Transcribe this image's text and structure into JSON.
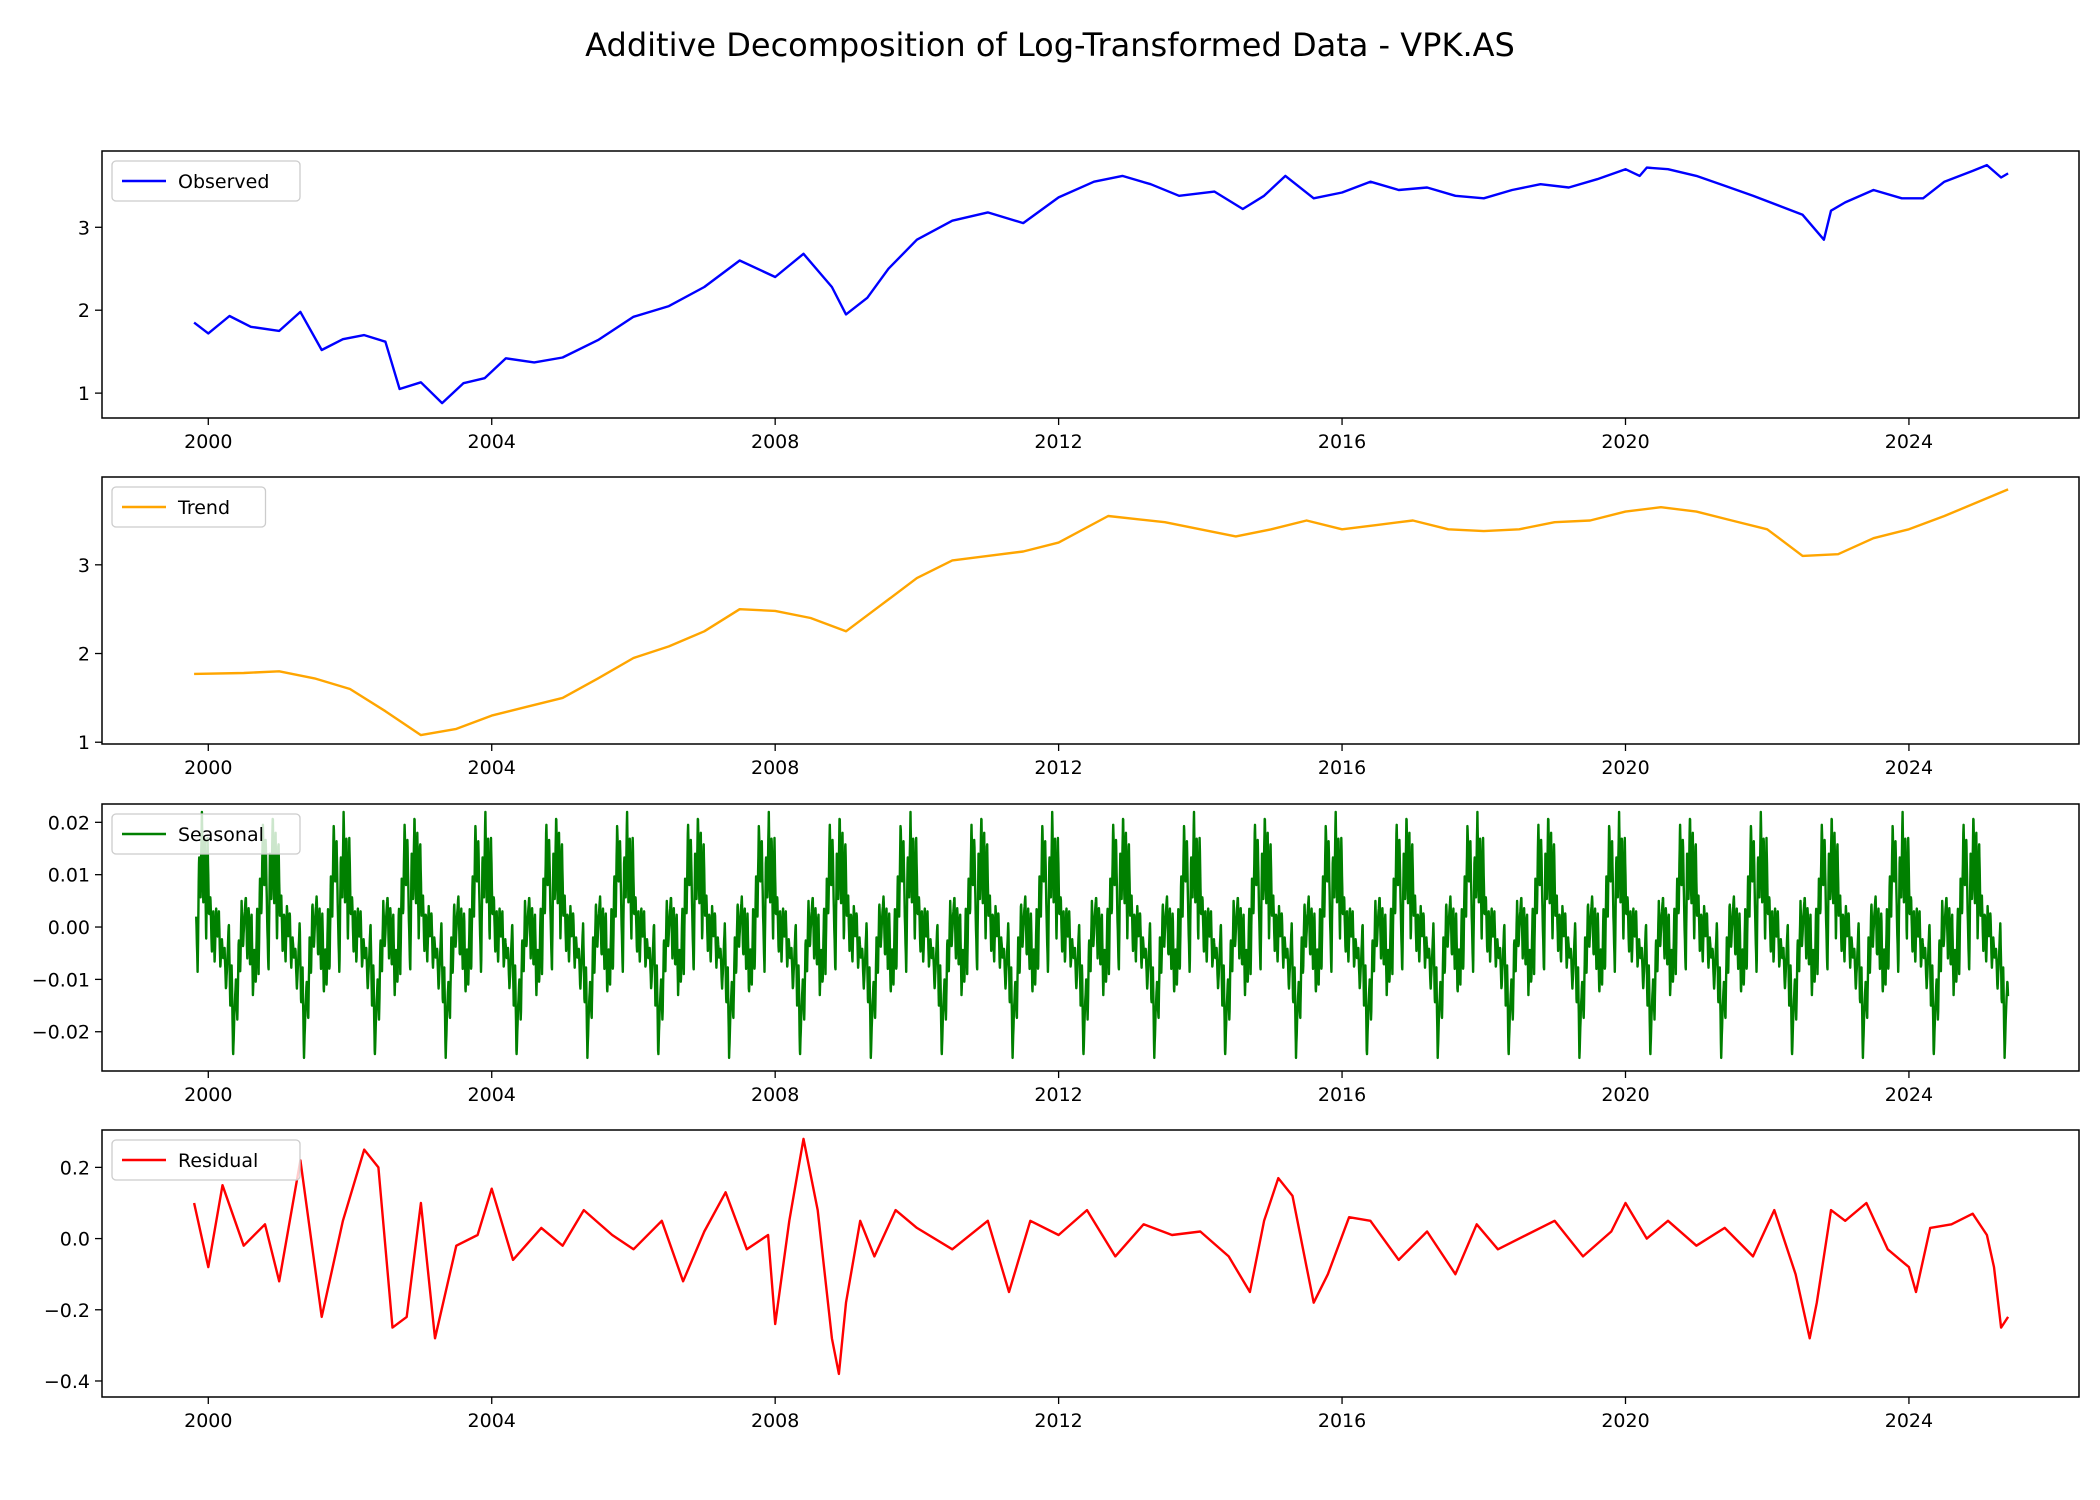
{
  "figure_title": "Additive Decomposition of Log-Transformed Data - VPK.AS",
  "chart_data": [
    {
      "type": "line",
      "legend_label": "Observed",
      "color": "#0000ff",
      "legend_position": "upper-left",
      "x_range": [
        1998.5,
        2026.4
      ],
      "ylim": [
        0.7,
        3.92
      ],
      "x_ticks": [
        "2000",
        "2004",
        "2008",
        "2012",
        "2016",
        "2020",
        "2024"
      ],
      "y_ticks": [
        "1",
        "2",
        "3"
      ],
      "series": [
        {
          "x": [
            1999.8,
            2000.0,
            2000.3,
            2000.6,
            2001.0,
            2001.3,
            2001.6,
            2001.9,
            2002.2,
            2002.5,
            2002.7,
            2003.0,
            2003.3,
            2003.6,
            2003.9,
            2004.2,
            2004.6,
            2005.0,
            2005.5,
            2006.0,
            2006.5,
            2007.0,
            2007.5,
            2008.0,
            2008.4,
            2008.8,
            2009.0,
            2009.3,
            2009.6,
            2010.0,
            2010.5,
            2011.0,
            2011.5,
            2012.0,
            2012.5,
            2012.9,
            2013.3,
            2013.7,
            2014.2,
            2014.6,
            2014.9,
            2015.2,
            2015.6,
            2016.0,
            2016.4,
            2016.8,
            2017.2,
            2017.6,
            2018.0,
            2018.4,
            2018.8,
            2019.2,
            2019.6,
            2020.0,
            2020.2,
            2020.3,
            2020.6,
            2021.0,
            2021.4,
            2021.8,
            2022.2,
            2022.5,
            2022.8,
            2022.9,
            2023.1,
            2023.5,
            2023.9,
            2024.2,
            2024.5,
            2024.9,
            2025.1,
            2025.3,
            2025.4
          ],
          "y": [
            1.85,
            1.72,
            1.93,
            1.8,
            1.75,
            1.98,
            1.52,
            1.65,
            1.7,
            1.62,
            1.05,
            1.13,
            0.88,
            1.12,
            1.18,
            1.42,
            1.37,
            1.43,
            1.64,
            1.92,
            2.05,
            2.28,
            2.6,
            2.4,
            2.68,
            2.28,
            1.95,
            2.15,
            2.5,
            2.85,
            3.08,
            3.18,
            3.05,
            3.36,
            3.55,
            3.62,
            3.52,
            3.38,
            3.43,
            3.22,
            3.38,
            3.62,
            3.35,
            3.42,
            3.55,
            3.45,
            3.48,
            3.38,
            3.35,
            3.45,
            3.52,
            3.48,
            3.58,
            3.7,
            3.62,
            3.72,
            3.7,
            3.62,
            3.5,
            3.38,
            3.25,
            3.15,
            2.85,
            3.2,
            3.3,
            3.45,
            3.35,
            3.35,
            3.55,
            3.68,
            3.75,
            3.6,
            3.65
          ]
        }
      ]
    },
    {
      "type": "line",
      "legend_label": "Trend",
      "color": "#ffa500",
      "legend_position": "upper-left",
      "x_range": [
        1998.5,
        2026.4
      ],
      "ylim": [
        0.98,
        3.99
      ],
      "x_ticks": [
        "2000",
        "2004",
        "2008",
        "2012",
        "2016",
        "2020",
        "2024"
      ],
      "y_ticks": [
        "1",
        "2",
        "3"
      ],
      "series": [
        {
          "x": [
            1999.8,
            2000.5,
            2001.0,
            2001.5,
            2002.0,
            2002.5,
            2003.0,
            2003.5,
            2004.0,
            2004.5,
            2005.0,
            2005.5,
            2006.0,
            2006.5,
            2007.0,
            2007.5,
            2008.0,
            2008.5,
            2009.0,
            2009.5,
            2010.0,
            2010.5,
            2011.0,
            2011.5,
            2012.0,
            2012.7,
            2013.5,
            2014.0,
            2014.5,
            2015.0,
            2015.5,
            2016.0,
            2016.5,
            2017.0,
            2017.5,
            2018.0,
            2018.5,
            2019.0,
            2019.5,
            2020.0,
            2020.5,
            2021.0,
            2021.5,
            2022.0,
            2022.5,
            2023.0,
            2023.5,
            2024.0,
            2024.5,
            2025.4
          ],
          "y": [
            1.77,
            1.78,
            1.8,
            1.72,
            1.6,
            1.35,
            1.08,
            1.15,
            1.3,
            1.4,
            1.5,
            1.72,
            1.95,
            2.08,
            2.25,
            2.5,
            2.48,
            2.4,
            2.25,
            2.55,
            2.85,
            3.05,
            3.1,
            3.15,
            3.25,
            3.55,
            3.48,
            3.4,
            3.32,
            3.4,
            3.5,
            3.4,
            3.45,
            3.5,
            3.4,
            3.38,
            3.4,
            3.48,
            3.5,
            3.6,
            3.65,
            3.6,
            3.5,
            3.4,
            3.1,
            3.12,
            3.3,
            3.4,
            3.55,
            3.85
          ]
        }
      ]
    },
    {
      "type": "line",
      "legend_label": "Seasonal",
      "color": "#008000",
      "legend_position": "upper-left",
      "x_range": [
        1998.5,
        2026.4
      ],
      "ylim": [
        -0.0275,
        0.0235
      ],
      "x_ticks": [
        "2000",
        "2004",
        "2008",
        "2012",
        "2016",
        "2020",
        "2024"
      ],
      "y_ticks": [
        "0.02",
        "0.01",
        "0.00",
        "−0.01",
        "−0.02"
      ],
      "series": [
        {
          "period_years": 1.0,
          "start_year": 1999.83,
          "end_year": 2025.4,
          "shape_phase": [
            0.0,
            0.02,
            0.04,
            0.06,
            0.08,
            0.1,
            0.12,
            0.14,
            0.16,
            0.18,
            0.2,
            0.22,
            0.24,
            0.26,
            0.28,
            0.3,
            0.32,
            0.34,
            0.36,
            0.38,
            0.4,
            0.42,
            0.44,
            0.46,
            0.48,
            0.5,
            0.52,
            0.54,
            0.56,
            0.58,
            0.6,
            0.62,
            0.64,
            0.66,
            0.68,
            0.7,
            0.72,
            0.74,
            0.76,
            0.78,
            0.8,
            0.82,
            0.84,
            0.86,
            0.88,
            0.9,
            0.92,
            0.94,
            0.96,
            0.98
          ],
          "shape_value": [
            0.002,
            -0.009,
            0.014,
            0.005,
            0.022,
            0.004,
            0.018,
            -0.003,
            0.017,
            0.002,
            0.006,
            -0.005,
            0.003,
            -0.007,
            0.004,
            -0.002,
            0.003,
            -0.008,
            -0.002,
            -0.006,
            -0.004,
            -0.012,
            -0.006,
            0.001,
            -0.015,
            -0.007,
            -0.025,
            -0.016,
            -0.01,
            -0.018,
            -0.002,
            -0.009,
            0.005,
            -0.004,
            0.002,
            0.006,
            -0.006,
            0.004,
            -0.008,
            0.003,
            -0.013,
            -0.004,
            -0.011,
            0.004,
            -0.009,
            0.01,
            0.002,
            0.02,
            0.008,
            0.017
          ]
        }
      ]
    },
    {
      "type": "line",
      "legend_label": "Residual",
      "color": "#ff0000",
      "legend_position": "upper-left",
      "x_range": [
        1998.5,
        2026.4
      ],
      "ylim": [
        -0.445,
        0.305
      ],
      "x_ticks": [
        "2000",
        "2004",
        "2008",
        "2012",
        "2016",
        "2020",
        "2024"
      ],
      "y_ticks": [
        "0.2",
        "0.0",
        "−0.2",
        "−0.4"
      ],
      "series": [
        {
          "x": [
            1999.8,
            2000.0,
            2000.2,
            2000.5,
            2000.8,
            2001.0,
            2001.3,
            2001.6,
            2001.9,
            2002.2,
            2002.4,
            2002.6,
            2002.8,
            2003.0,
            2003.2,
            2003.5,
            2003.8,
            2004.0,
            2004.3,
            2004.7,
            2005.0,
            2005.3,
            2005.7,
            2006.0,
            2006.4,
            2006.7,
            2007.0,
            2007.3,
            2007.6,
            2007.9,
            2008.0,
            2008.2,
            2008.4,
            2008.6,
            2008.8,
            2008.9,
            2009.0,
            2009.2,
            2009.4,
            2009.7,
            2010.0,
            2010.5,
            2011.0,
            2011.3,
            2011.6,
            2012.0,
            2012.4,
            2012.8,
            2013.2,
            2013.6,
            2014.0,
            2014.4,
            2014.7,
            2014.9,
            2015.1,
            2015.3,
            2015.5,
            2015.6,
            2015.8,
            2016.1,
            2016.4,
            2016.8,
            2017.2,
            2017.6,
            2017.9,
            2018.2,
            2018.6,
            2019.0,
            2019.4,
            2019.8,
            2020.0,
            2020.3,
            2020.6,
            2021.0,
            2021.4,
            2021.8,
            2022.1,
            2022.4,
            2022.6,
            2022.7,
            2022.9,
            2023.1,
            2023.4,
            2023.7,
            2024.0,
            2024.1,
            2024.3,
            2024.6,
            2024.9,
            2025.1,
            2025.2,
            2025.3,
            2025.4
          ],
          "y": [
            0.1,
            -0.08,
            0.15,
            -0.02,
            0.04,
            -0.12,
            0.22,
            -0.22,
            0.05,
            0.25,
            0.2,
            -0.25,
            -0.22,
            0.1,
            -0.28,
            -0.02,
            0.01,
            0.14,
            -0.06,
            0.03,
            -0.02,
            0.08,
            0.01,
            -0.03,
            0.05,
            -0.12,
            0.02,
            0.13,
            -0.03,
            0.01,
            -0.24,
            0.05,
            0.28,
            0.08,
            -0.28,
            -0.38,
            -0.18,
            0.05,
            -0.05,
            0.08,
            0.03,
            -0.03,
            0.05,
            -0.15,
            0.05,
            0.01,
            0.08,
            -0.05,
            0.04,
            0.01,
            0.02,
            -0.05,
            -0.15,
            0.05,
            0.17,
            0.12,
            -0.08,
            -0.18,
            -0.1,
            0.06,
            0.05,
            -0.06,
            0.02,
            -0.1,
            0.04,
            -0.03,
            0.01,
            0.05,
            -0.05,
            0.02,
            0.1,
            0.0,
            0.05,
            -0.02,
            0.03,
            -0.05,
            0.08,
            -0.1,
            -0.28,
            -0.18,
            0.08,
            0.05,
            0.1,
            -0.03,
            -0.08,
            -0.15,
            0.03,
            0.04,
            0.07,
            0.01,
            -0.08,
            -0.25,
            -0.22
          ]
        }
      ]
    }
  ]
}
